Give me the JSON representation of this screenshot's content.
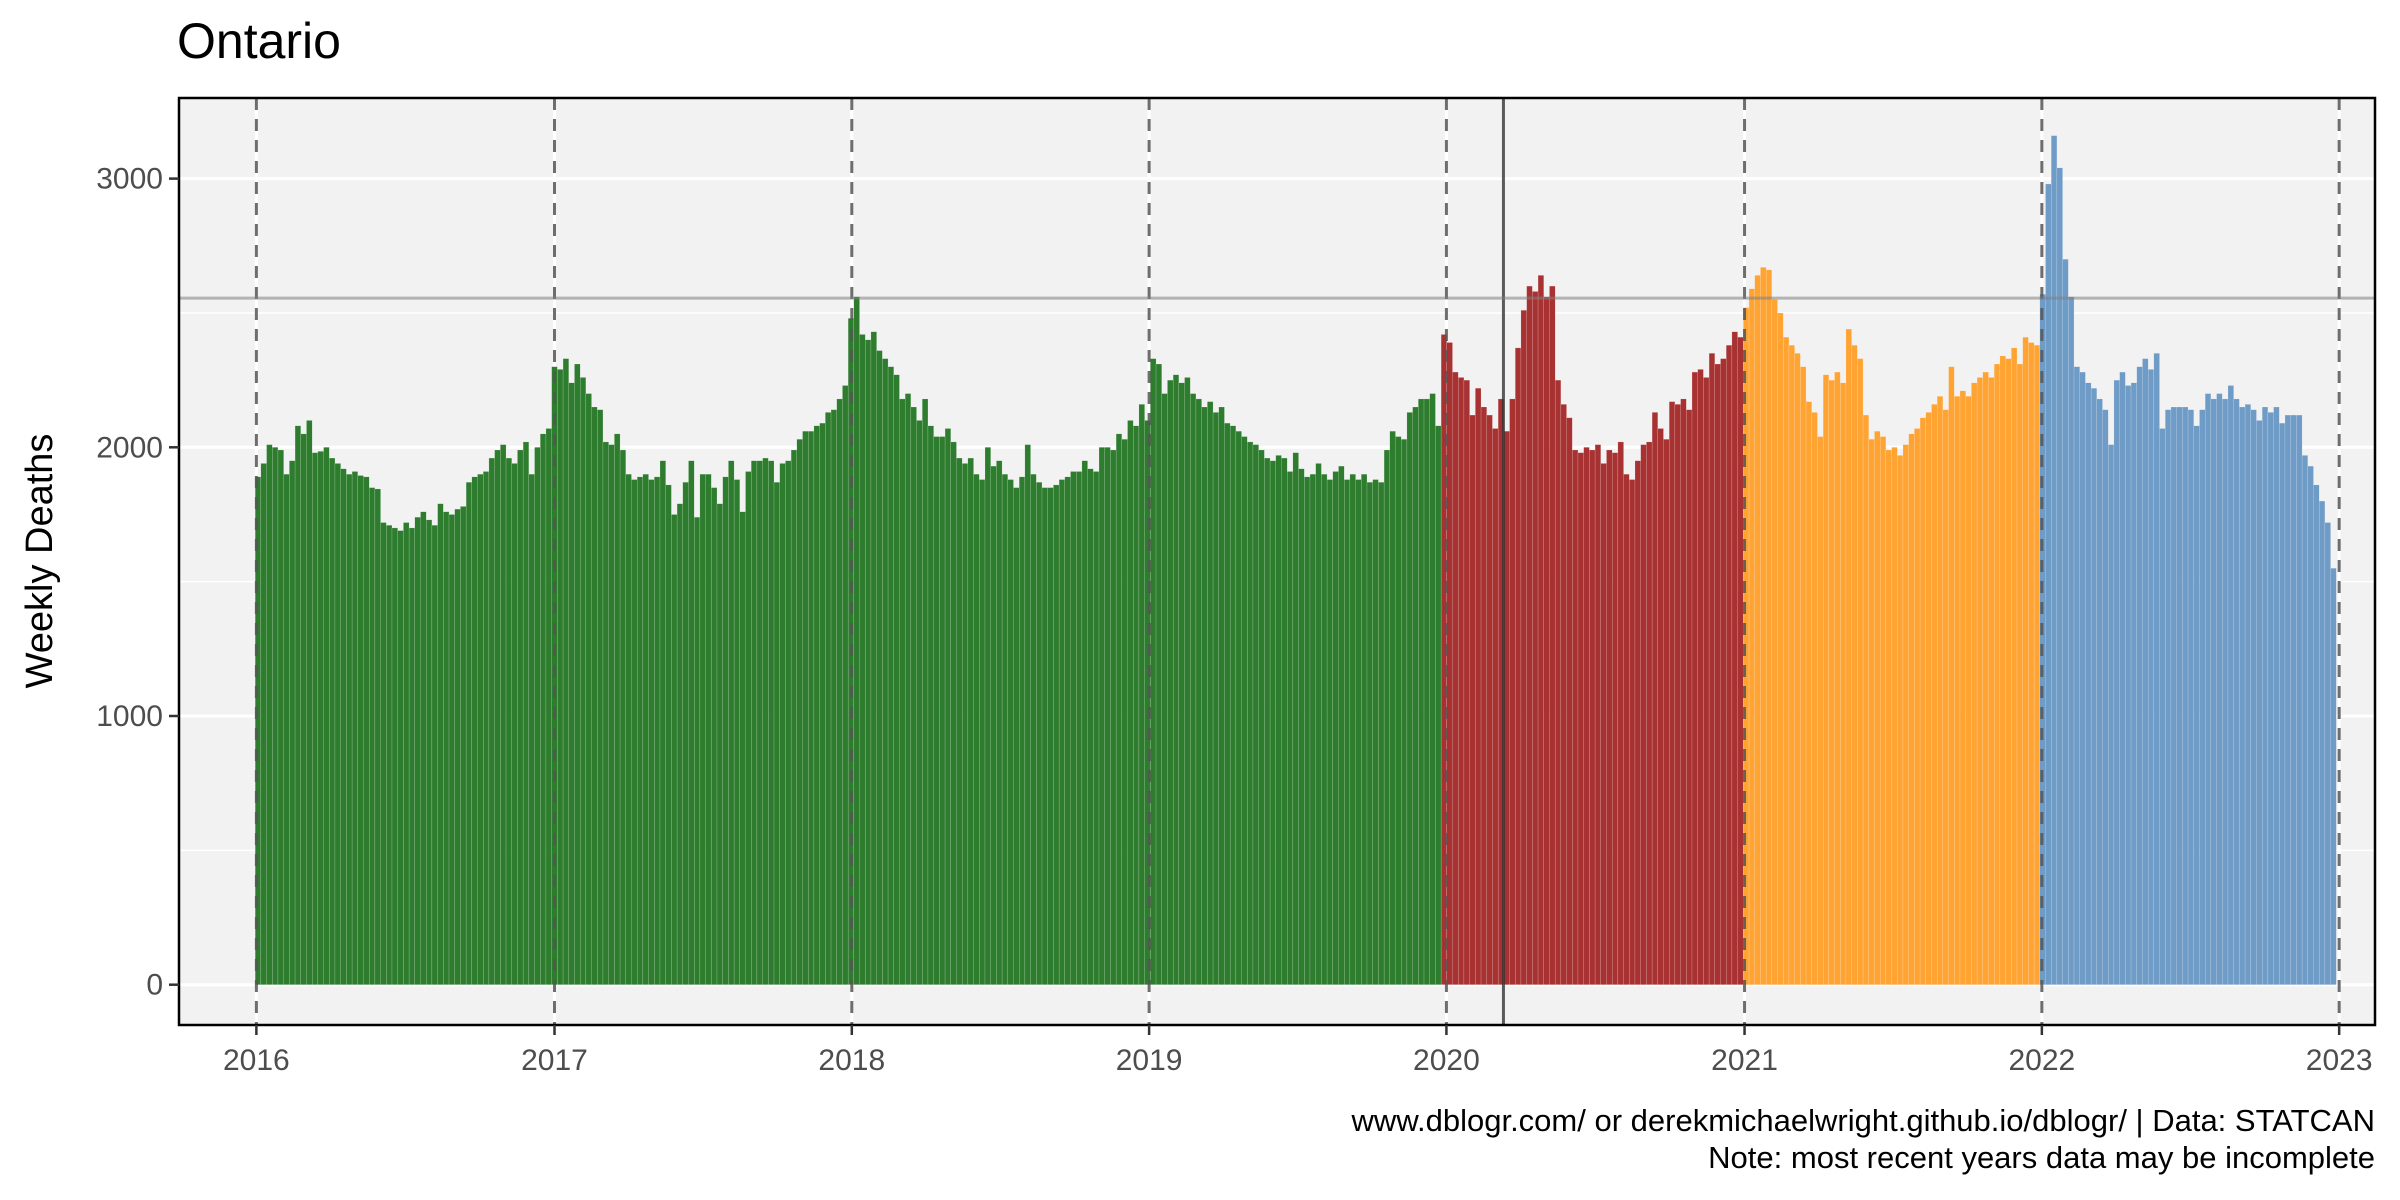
{
  "chart_data": {
    "type": "bar",
    "title": "Ontario",
    "ylabel": "Weekly Deaths",
    "xlabel": "",
    "x_ticks": [
      "2016",
      "2017",
      "2018",
      "2019",
      "2020",
      "2021",
      "2022",
      "2023"
    ],
    "y_ticks": [
      "0",
      "1000",
      "2000",
      "3000"
    ],
    "xlim": [
      "2015-09-28",
      "2023-02-14"
    ],
    "ylim": [
      -150,
      3300
    ],
    "grid": true,
    "year_boundaries": [
      "2016-01-01",
      "2017-01-01",
      "2018-01-01",
      "2019-01-01",
      "2020-01-01",
      "2021-01-01",
      "2022-01-01",
      "2023-01-01"
    ],
    "reference_line_date": "2020-03-11",
    "reference_line_value": 2555,
    "caption_lines": [
      "www.dblogr.com/ or derekmichaelwright.github.io/dblogr/ | Data: STATCAN",
      "Note: most recent years data may be incomplete"
    ],
    "series": [
      {
        "start_date": "2016-01-03",
        "color": "#2e7d2e",
        "values": [
          1890,
          1940,
          2010,
          2000,
          1990,
          1900,
          1950,
          2080,
          2050,
          2100,
          1980,
          1985,
          2000,
          1960,
          1940,
          1920,
          1900,
          1910,
          1895,
          1890,
          1850,
          1845,
          1720,
          1710,
          1700,
          1690,
          1720,
          1700,
          1740,
          1760,
          1730,
          1710,
          1790,
          1760,
          1750,
          1770,
          1780,
          1870,
          1890,
          1900,
          1910,
          1960,
          1990,
          2010,
          1960,
          1940,
          1990,
          2020,
          1900,
          2000,
          2050,
          2070
        ]
      },
      {
        "start_date": "2017-01-01",
        "color": "#2e7d2e",
        "values": [
          2300,
          2290,
          2330,
          2240,
          2310,
          2260,
          2200,
          2150,
          2140,
          2020,
          2010,
          2050,
          1990,
          1900,
          1880,
          1890,
          1900,
          1880,
          1890,
          1950,
          1860,
          1750,
          1790,
          1870,
          1950,
          1740,
          1900,
          1900,
          1850,
          1790,
          1890,
          1950,
          1880,
          1760,
          1910,
          1950,
          1950,
          1960,
          1950,
          1870,
          1940,
          1950,
          1990,
          2030,
          2060,
          2060,
          2080,
          2090,
          2130,
          2140,
          2180,
          2230
        ]
      },
      {
        "start_date": "2017-12-31",
        "color": "#2e7d2e",
        "values": [
          2480,
          2560,
          2420,
          2400,
          2430,
          2360,
          2330,
          2300,
          2270,
          2180,
          2200,
          2150,
          2100,
          2180,
          2080,
          2040,
          2040,
          2070,
          2020,
          1960,
          1940,
          1960,
          1900,
          1880,
          2000,
          1930,
          1950,
          1900,
          1880,
          1850,
          1890,
          2010,
          1900,
          1870,
          1850,
          1850,
          1860,
          1880,
          1890,
          1910,
          1910,
          1950,
          1920,
          1910,
          2000,
          2000,
          1990,
          2050,
          2030,
          2100,
          2080,
          2160
        ]
      },
      {
        "start_date": "2018-12-30",
        "color": "#2e7d2e",
        "values": [
          2100,
          2330,
          2310,
          2200,
          2250,
          2270,
          2240,
          2260,
          2200,
          2180,
          2150,
          2170,
          2130,
          2150,
          2090,
          2080,
          2060,
          2040,
          2020,
          2010,
          1990,
          1960,
          1950,
          1970,
          1960,
          1910,
          1980,
          1920,
          1890,
          1900,
          1940,
          1900,
          1880,
          1910,
          1930,
          1880,
          1900,
          1880,
          1900,
          1870,
          1880,
          1870,
          1990,
          2060,
          2040,
          2030,
          2130,
          2150,
          2180,
          2180,
          2200,
          2080
        ]
      },
      {
        "start_date": "2019-12-29",
        "color": "#a83232",
        "values": [
          2420,
          2390,
          2280,
          2260,
          2250,
          2120,
          2220,
          2150,
          2120,
          2070,
          2180,
          2060,
          2180,
          2370,
          2510,
          2600,
          2580,
          2640,
          2560,
          2600,
          2250,
          2160,
          2110,
          1990,
          1980,
          2000,
          1990,
          2010,
          1940,
          1990,
          1980,
          2020,
          1900,
          1880,
          1950,
          2010,
          2020,
          2130,
          2070,
          2030,
          2170,
          2160,
          2180,
          2140,
          2280,
          2290,
          2260,
          2350,
          2310,
          2330,
          2380,
          2430,
          2410
        ]
      },
      {
        "start_date": "2021-01-03",
        "color": "#ffa333",
        "values": [
          2520,
          2590,
          2640,
          2670,
          2660,
          2550,
          2500,
          2410,
          2380,
          2350,
          2300,
          2170,
          2130,
          2040,
          2270,
          2250,
          2280,
          2240,
          2440,
          2380,
          2330,
          2120,
          2030,
          2060,
          2040,
          1990,
          2000,
          1970,
          2010,
          2050,
          2070,
          2110,
          2130,
          2160,
          2190,
          2140,
          2300,
          2190,
          2210,
          2190,
          2240,
          2260,
          2280,
          2260,
          2310,
          2340,
          2330,
          2370,
          2310,
          2410,
          2390,
          2380
        ]
      },
      {
        "start_date": "2022-01-02",
        "color": "#6f9bc7",
        "values": [
          2570,
          2980,
          3160,
          3040,
          2700,
          2560,
          2300,
          2280,
          2240,
          2220,
          2180,
          2140,
          2010,
          2250,
          2280,
          2230,
          2240,
          2300,
          2330,
          2290,
          2350,
          2070,
          2140,
          2150,
          2150,
          2150,
          2140,
          2080,
          2140,
          2200,
          2180,
          2200,
          2180,
          2230,
          2180,
          2150,
          2160,
          2140,
          2100,
          2150,
          2130,
          2150,
          2090,
          2120,
          2120,
          2120,
          1970,
          1930,
          1860,
          1800,
          1720,
          1550
        ]
      }
    ]
  }
}
